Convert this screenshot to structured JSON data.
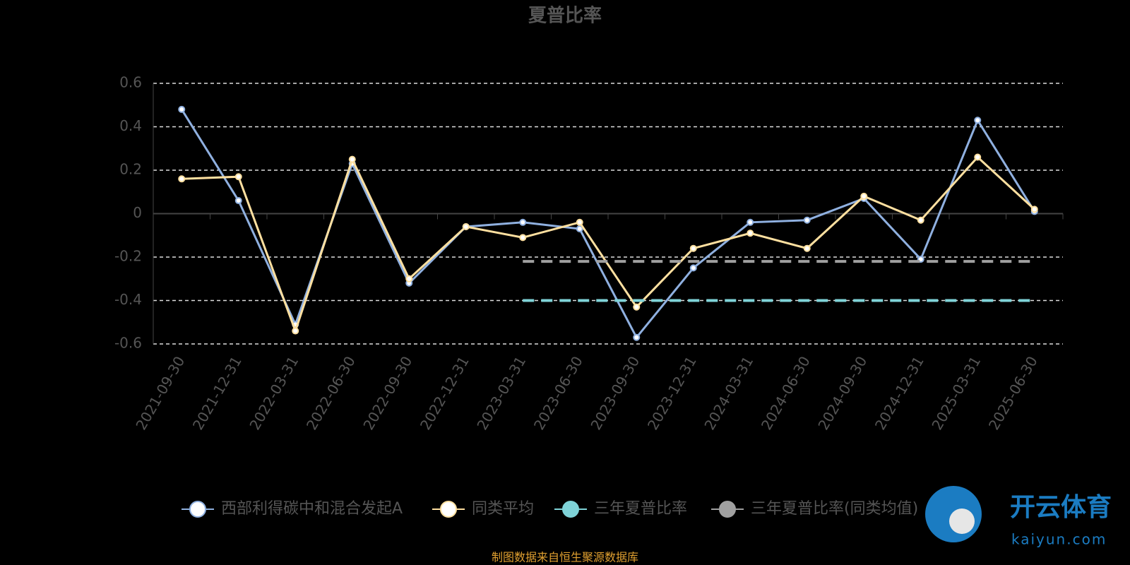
{
  "chart_data": {
    "type": "line",
    "title": "夏普比率",
    "categories": [
      "2021-09-30",
      "2021-12-31",
      "2022-03-31",
      "2022-06-30",
      "2022-09-30",
      "2022-12-31",
      "2023-03-31",
      "2023-06-30",
      "2023-09-30",
      "2023-12-31",
      "2024-03-31",
      "2024-06-30",
      "2024-09-30",
      "2024-12-31",
      "2025-03-31",
      "2025-06-30"
    ],
    "series": [
      {
        "name": "西部利得碳中和混合发起A",
        "color": "#8fb0e0",
        "values": [
          0.48,
          0.06,
          -0.51,
          0.23,
          -0.32,
          -0.06,
          -0.04,
          -0.07,
          -0.57,
          -0.25,
          -0.04,
          -0.03,
          0.07,
          -0.21,
          0.43,
          0.01
        ]
      },
      {
        "name": "同类平均",
        "color": "#ffe0a0",
        "values": [
          0.16,
          0.17,
          -0.54,
          0.25,
          -0.3,
          -0.06,
          -0.11,
          -0.04,
          -0.43,
          -0.16,
          -0.09,
          -0.16,
          0.08,
          -0.03,
          0.26,
          0.02
        ]
      },
      {
        "name": "三年夏普比率",
        "color": "#7fd3d8",
        "dashed": true,
        "values": [
          null,
          null,
          null,
          null,
          null,
          null,
          -0.4,
          -0.4,
          -0.4,
          -0.4,
          -0.4,
          -0.4,
          -0.4,
          -0.4,
          -0.4,
          -0.4
        ]
      },
      {
        "name": "三年夏普比率(同类均值)",
        "color": "#a0a0a0",
        "dashed": true,
        "values": [
          null,
          null,
          null,
          null,
          null,
          null,
          -0.22,
          -0.22,
          -0.22,
          -0.22,
          -0.22,
          -0.22,
          -0.22,
          -0.22,
          -0.22,
          -0.22
        ]
      }
    ],
    "ylim": [
      -0.6,
      0.6
    ],
    "yticks": [
      -0.6,
      -0.4,
      -0.2,
      0,
      0.2,
      0.4,
      0.6
    ],
    "grid": true,
    "source": "制图数据来自恒生聚源数据库",
    "watermark": "开云体育",
    "watermark_url": "kaiyun.com"
  }
}
